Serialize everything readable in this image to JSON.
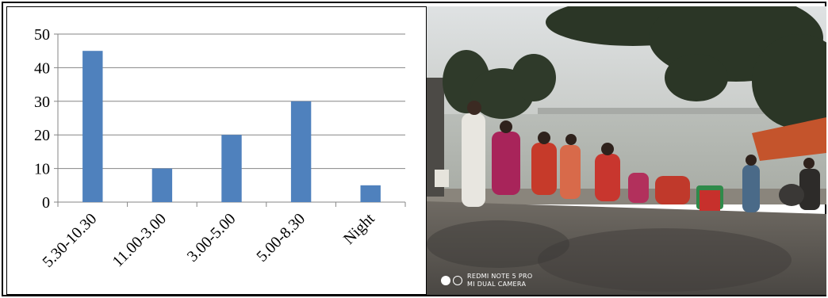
{
  "chart_data": {
    "type": "bar",
    "title": "",
    "xlabel": "",
    "ylabel": "",
    "categories": [
      "5.30-10.30",
      "11.00-3.00",
      "3.00-5.00",
      "5.00-8.30",
      "Night"
    ],
    "values": [
      45,
      10,
      20,
      30,
      5
    ],
    "ylim": [
      0,
      50
    ],
    "yticks": [
      "0",
      "10",
      "20",
      "30",
      "40",
      "50"
    ],
    "grid": true,
    "legend": "none",
    "bar_color": "#4f81bd"
  },
  "photo": {
    "watermark_line1": "REDMI NOTE 5 PRO",
    "watermark_line2": "MI DUAL CAMERA"
  }
}
